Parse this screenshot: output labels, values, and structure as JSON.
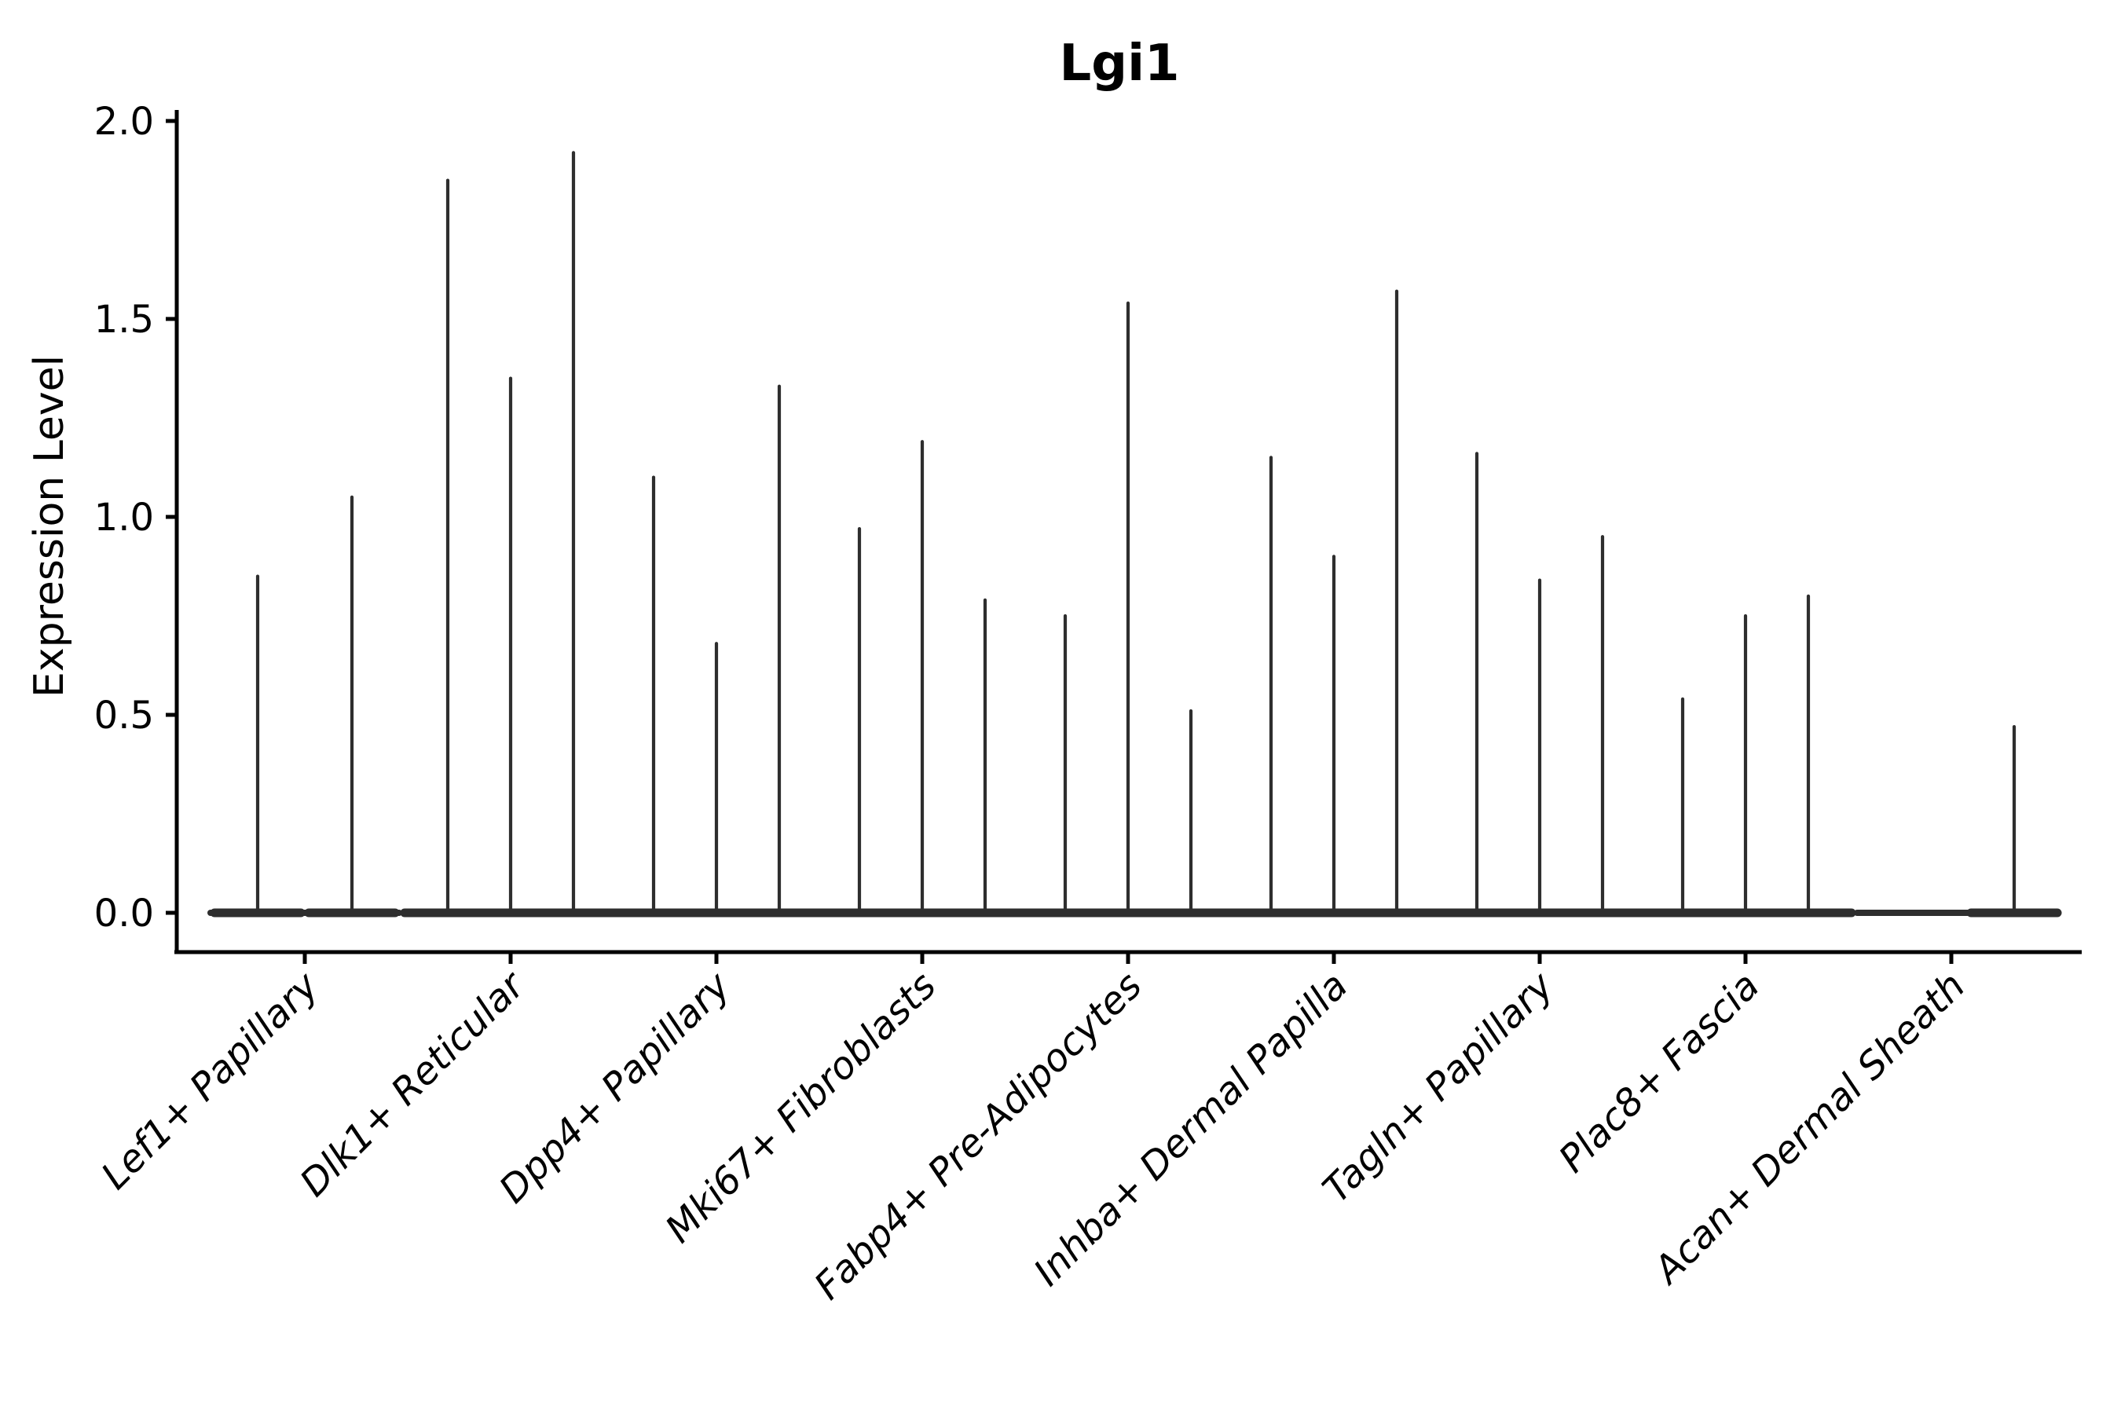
{
  "chart_data": {
    "type": "violin",
    "title": "Lgi1",
    "xlabel": "",
    "ylabel": "Expression Level",
    "ylim": [
      0.0,
      2.0
    ],
    "ytick_values": [
      0.0,
      0.5,
      1.0,
      1.5,
      2.0
    ],
    "ytick_labels": [
      "0.0",
      "0.5",
      "1.0",
      "1.5",
      "2.0"
    ],
    "grid": false,
    "legend": "none",
    "xtick_rotation": 45,
    "violin_color": "#2e2e2e",
    "axis_color": "#000000",
    "groups": [
      {
        "category": "Lef1+ Papillary",
        "spike_maxima": [
          0.85,
          1.05
        ]
      },
      {
        "category": "Dlk1+ Reticular",
        "spike_maxima": [
          1.85,
          1.35,
          1.92
        ]
      },
      {
        "category": "Dpp4+ Papillary",
        "spike_maxima": [
          1.1,
          0.68,
          1.33
        ]
      },
      {
        "category": "Mki67+ Fibroblasts",
        "spike_maxima": [
          0.97,
          1.19,
          0.79
        ]
      },
      {
        "category": "Fabp4+ Pre-Adipocytes",
        "spike_maxima": [
          0.75,
          1.54,
          0.51
        ]
      },
      {
        "category": "Inhba+ Dermal Papilla",
        "spike_maxima": [
          1.15,
          0.9,
          1.57
        ]
      },
      {
        "category": "Tagln+ Papillary",
        "spike_maxima": [
          1.16,
          0.84,
          0.95
        ]
      },
      {
        "category": "Plac8+ Fascia",
        "spike_maxima": [
          0.54,
          0.75,
          0.8
        ]
      },
      {
        "category": "Acan+ Dermal Sheath",
        "spike_maxima": [
          0.0,
          0.0,
          0.47
        ]
      }
    ]
  }
}
